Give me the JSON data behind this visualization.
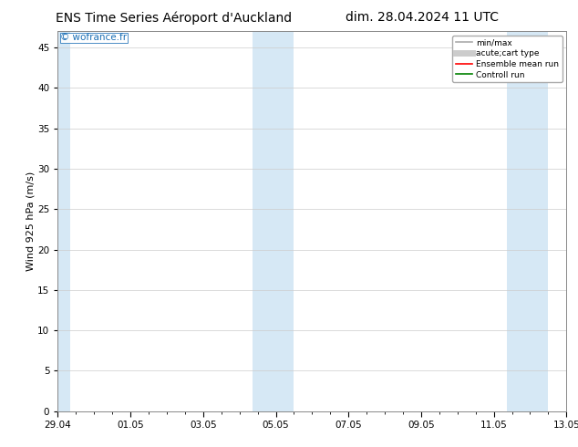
{
  "title_left": "ENS Time Series Aéroport d'Auckland",
  "title_right": "dim. 28.04.2024 11 UTC",
  "ylabel": "Wind 925 hPa (m/s)",
  "watermark": "© wofrance.fr",
  "watermark_color": "#1a6eb5",
  "ylim": [
    0,
    47
  ],
  "yticks": [
    0,
    5,
    10,
    15,
    20,
    25,
    30,
    35,
    40,
    45
  ],
  "bg_color": "#ffffff",
  "plot_bg_color": "#ffffff",
  "shaded_band_color": "#d6e8f5",
  "legend_items": [
    {
      "label": "min/max",
      "color": "#aaaaaa",
      "lw": 1.2,
      "style": "solid"
    },
    {
      "label": "acute;cart type",
      "color": "#cccccc",
      "lw": 5,
      "style": "solid"
    },
    {
      "label": "Ensemble mean run",
      "color": "#ff0000",
      "lw": 1.2,
      "style": "solid"
    },
    {
      "label": "Controll run",
      "color": "#008000",
      "lw": 1.2,
      "style": "solid"
    }
  ],
  "grid_color": "#cccccc",
  "title_fontsize": 10,
  "axis_fontsize": 8,
  "tick_fontsize": 7.5,
  "x_start_days": 0,
  "x_end_days": 14,
  "x_major_ticks_days": [
    0,
    2,
    4,
    6,
    8,
    10,
    12,
    14
  ],
  "x_major_tick_labels": [
    "29.04",
    "01.05",
    "03.05",
    "05.05",
    "07.05",
    "09.05",
    "11.05",
    "13.05"
  ],
  "shaded_bands": [
    {
      "xstart": 0.0,
      "xend": 0.35
    },
    {
      "xstart": 5.35,
      "xend": 6.5
    },
    {
      "xstart": 12.35,
      "xend": 13.5
    }
  ]
}
